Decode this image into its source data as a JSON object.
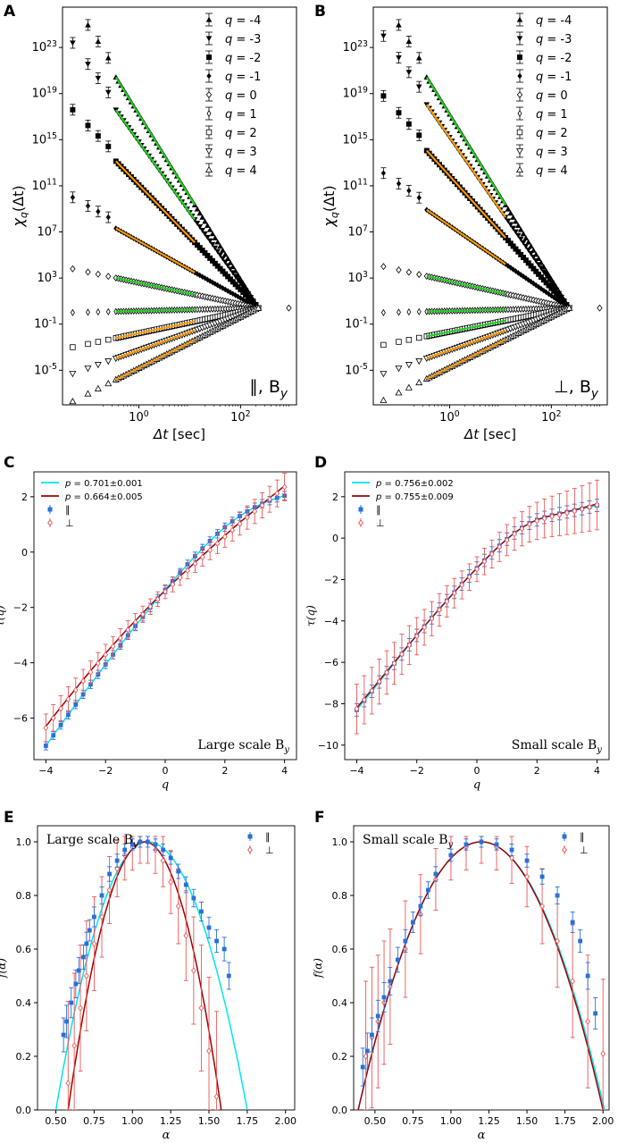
{
  "figure": {
    "panel_letters": [
      "A",
      "B",
      "C",
      "D",
      "E",
      "F"
    ]
  },
  "chart_data": [
    {
      "id": "A",
      "type": "scatter",
      "xscale": "log",
      "yscale": "log",
      "xlim_exp": [
        -1.5,
        3.1
      ],
      "ylim_exp": [
        -8,
        26.5
      ],
      "xticks": [
        {
          "exp": 0,
          "label": "10^0"
        },
        {
          "exp": 2,
          "label": "10^2"
        }
      ],
      "yticks": [
        {
          "exp": -5,
          "label": "10^-5"
        },
        {
          "exp": -1,
          "label": "10^-1"
        },
        {
          "exp": 3,
          "label": "10^3"
        },
        {
          "exp": 7,
          "label": "10^7"
        },
        {
          "exp": 11,
          "label": "10^11"
        },
        {
          "exp": 15,
          "label": "10^15"
        },
        {
          "exp": 19,
          "label": "10^19"
        },
        {
          "exp": 23,
          "label": "10^23"
        }
      ],
      "xlabel": "Δt [sec]",
      "ylabel": "χ_q(Δt)",
      "annotation": "∥, B_y",
      "legend": [
        "q = -4",
        "q = -3",
        "q = -2",
        "q = -1",
        "q = 0",
        "q = 1",
        "q = 2",
        "q = 3",
        "q = 4"
      ],
      "series": [
        {
          "q": -4,
          "start_exp": 26.5,
          "fit": "green"
        },
        {
          "q": -3,
          "start_exp": 22.8,
          "fit": "green"
        },
        {
          "q": -2,
          "start_exp": 17.0,
          "fit": "orange"
        },
        {
          "q": -1,
          "start_exp": 9.4,
          "fit": "orange"
        },
        {
          "q": 0,
          "start_exp": 3.8,
          "fit": "green"
        },
        {
          "q": 1,
          "start_exp": 0.0,
          "fit": "green"
        },
        {
          "q": 2,
          "start_exp": -3.0,
          "fit": "orange"
        },
        {
          "q": 3,
          "start_exp": -5.3,
          "fit": "orange"
        },
        {
          "q": 4,
          "start_exp": -7.7,
          "fit": "orange"
        }
      ],
      "converge_exp": 0.4
    },
    {
      "id": "B",
      "type": "scatter",
      "xscale": "log",
      "yscale": "log",
      "xlim_exp": [
        -1.5,
        3.1
      ],
      "ylim_exp": [
        -8,
        26.5
      ],
      "xticks": [
        {
          "exp": 0,
          "label": "10^0"
        },
        {
          "exp": 2,
          "label": "10^2"
        }
      ],
      "yticks": [
        {
          "exp": -5,
          "label": "10^-5"
        },
        {
          "exp": -1,
          "label": "10^-1"
        },
        {
          "exp": 3,
          "label": "10^3"
        },
        {
          "exp": 7,
          "label": "10^7"
        },
        {
          "exp": 11,
          "label": "10^11"
        },
        {
          "exp": 15,
          "label": "10^15"
        },
        {
          "exp": 19,
          "label": "10^19"
        },
        {
          "exp": 23,
          "label": "10^23"
        }
      ],
      "xlabel": "Δt [sec]",
      "ylabel": "χ_q(Δt)",
      "annotation": "⊥, B_y",
      "legend": [
        "q = -4",
        "q = -3",
        "q = -2",
        "q = -1",
        "q = 0",
        "q = 1",
        "q = 2",
        "q = 3",
        "q = 4"
      ],
      "series": [
        {
          "q": -4,
          "start_exp": 26.5,
          "fit": "green"
        },
        {
          "q": -3,
          "start_exp": 23.4,
          "fit": "orange"
        },
        {
          "q": -2,
          "start_exp": 18.2,
          "fit": "orange"
        },
        {
          "q": -1,
          "start_exp": 11.5,
          "fit": "orange"
        },
        {
          "q": 0,
          "start_exp": 4.0,
          "fit": "green"
        },
        {
          "q": 1,
          "start_exp": 0.0,
          "fit": "green"
        },
        {
          "q": 2,
          "start_exp": -2.8,
          "fit": "green"
        },
        {
          "q": 3,
          "start_exp": -5.3,
          "fit": "orange"
        },
        {
          "q": 4,
          "start_exp": -7.6,
          "fit": "orange"
        }
      ],
      "converge_exp": 0.4
    },
    {
      "id": "C",
      "type": "line",
      "xlim": [
        -4.4,
        4.4
      ],
      "ylim": [
        -7.5,
        2.9
      ],
      "xticks": [
        -4,
        -2,
        0,
        2,
        4
      ],
      "yticks": [
        -6,
        -4,
        -2,
        0,
        2
      ],
      "xlabel": "q",
      "ylabel": "τ(q)",
      "annotation": "Large scale B_y",
      "legend": [
        {
          "label": "p = 0.701±0.001",
          "color": "#00e5ee",
          "kind": "line"
        },
        {
          "label": "p = 0.664±0.005",
          "color": "#a00000",
          "kind": "line"
        },
        {
          "label": "∥",
          "color": "#2a6fdb",
          "kind": "square"
        },
        {
          "label": "⊥",
          "color": "#ee5555",
          "kind": "diamond"
        }
      ],
      "q": [
        -4,
        -3.75,
        -3.5,
        -3.25,
        -3,
        -2.75,
        -2.5,
        -2.25,
        -2,
        -1.75,
        -1.5,
        -1.25,
        -1,
        -0.75,
        -0.5,
        -0.25,
        0,
        0.25,
        0.5,
        0.75,
        1,
        1.25,
        1.5,
        1.75,
        2,
        2.25,
        2.5,
        2.75,
        3,
        3.25,
        3.5,
        3.75,
        4
      ],
      "series": [
        {
          "name": "∥ fit",
          "color": "#00e5ee",
          "values": [
            -7.0,
            -6.62,
            -6.25,
            -5.88,
            -5.51,
            -5.14,
            -4.78,
            -4.42,
            -4.06,
            -3.71,
            -3.36,
            -3.01,
            -2.67,
            -2.34,
            -2.0,
            -1.68,
            -1.36,
            -1.05,
            -0.74,
            -0.44,
            -0.15,
            0.13,
            0.4,
            0.66,
            0.9,
            1.11,
            1.3,
            1.47,
            1.62,
            1.75,
            1.86,
            1.96,
            2.04
          ]
        },
        {
          "name": "⊥ fit",
          "color": "#a00000",
          "values": [
            -6.3,
            -5.95,
            -5.61,
            -5.27,
            -4.94,
            -4.61,
            -4.29,
            -3.97,
            -3.66,
            -3.36,
            -3.06,
            -2.76,
            -2.48,
            -2.2,
            -1.92,
            -1.65,
            -1.38,
            -1.12,
            -0.87,
            -0.62,
            -0.37,
            -0.13,
            0.12,
            0.36,
            0.6,
            0.84,
            1.07,
            1.3,
            1.52,
            1.74,
            1.96,
            2.17,
            2.4
          ]
        }
      ],
      "err_par": 0.15,
      "err_perp": 0.25
    },
    {
      "id": "D",
      "type": "line",
      "xlim": [
        -4.4,
        4.4
      ],
      "ylim": [
        -10.7,
        3.2
      ],
      "xticks": [
        -4,
        -2,
        0,
        2,
        4
      ],
      "yticks": [
        -10,
        -8,
        -6,
        -4,
        -2,
        0,
        2
      ],
      "xlabel": "q",
      "ylabel": "τ(q)",
      "annotation": "Small scale B_y",
      "legend": [
        {
          "label": "p = 0.756±0.002",
          "color": "#00e5ee",
          "kind": "line"
        },
        {
          "label": "p = 0.755±0.009",
          "color": "#a00000",
          "kind": "line"
        },
        {
          "label": "∥",
          "color": "#2a6fdb",
          "kind": "square"
        },
        {
          "label": "⊥",
          "color": "#ee5555",
          "kind": "diamond"
        }
      ],
      "q": [
        -4,
        -3.75,
        -3.5,
        -3.25,
        -3,
        -2.75,
        -2.5,
        -2.25,
        -2,
        -1.75,
        -1.5,
        -1.25,
        -1,
        -0.75,
        -0.5,
        -0.25,
        0,
        0.25,
        0.5,
        0.75,
        1,
        1.25,
        1.5,
        1.75,
        2,
        2.25,
        2.5,
        2.75,
        3,
        3.25,
        3.5,
        3.75,
        4
      ],
      "series": [
        {
          "name": "∥ fit",
          "color": "#00e5ee",
          "values": [
            -8.3,
            -7.85,
            -7.4,
            -6.95,
            -6.5,
            -6.05,
            -5.6,
            -5.15,
            -4.7,
            -4.27,
            -3.85,
            -3.43,
            -3.02,
            -2.62,
            -2.22,
            -1.83,
            -1.45,
            -1.08,
            -0.72,
            -0.37,
            -0.05,
            0.25,
            0.5,
            0.72,
            0.88,
            1.0,
            1.1,
            1.18,
            1.26,
            1.34,
            1.42,
            1.5,
            1.58
          ]
        },
        {
          "name": "⊥ fit",
          "color": "#a00000",
          "values": [
            -8.2,
            -7.76,
            -7.32,
            -6.88,
            -6.44,
            -6.0,
            -5.56,
            -5.12,
            -4.69,
            -4.26,
            -3.84,
            -3.42,
            -3.01,
            -2.61,
            -2.21,
            -1.83,
            -1.45,
            -1.08,
            -0.72,
            -0.37,
            -0.05,
            0.25,
            0.5,
            0.72,
            0.88,
            1.0,
            1.1,
            1.18,
            1.27,
            1.36,
            1.45,
            1.55,
            1.65
          ]
        }
      ],
      "err_par": 0.3,
      "err_perp": 0.6
    },
    {
      "id": "E",
      "type": "line",
      "xlim": [
        0.38,
        2.06
      ],
      "ylim": [
        0,
        1.06
      ],
      "xticks": [
        0.5,
        0.75,
        1.0,
        1.25,
        1.5,
        1.75,
        2.0
      ],
      "xtick_labels": [
        "0.50",
        "0.75",
        "1.00",
        "1.25",
        "1.50",
        "1.75",
        "2.00"
      ],
      "yticks": [
        0,
        0.2,
        0.4,
        0.6,
        0.8,
        1.0
      ],
      "ytick_labels": [
        "0.0",
        "0.2",
        "0.4",
        "0.6",
        "0.8",
        "1.0"
      ],
      "xlabel": "α",
      "ylabel": "f(α)",
      "annotation": "Large scale B_y",
      "legend": [
        {
          "label": "∥",
          "color": "#2a6fdb",
          "kind": "square"
        },
        {
          "label": "⊥",
          "color": "#ee5555",
          "kind": "diamond"
        }
      ],
      "curves": [
        {
          "name": "∥ fit",
          "color": "#00e5ee",
          "peak": 1.1,
          "left_root": 0.5,
          "right_root": 1.75
        },
        {
          "name": "⊥ fit",
          "color": "#a00000",
          "peak": 1.08,
          "left_root": 0.58,
          "right_root": 1.58
        }
      ],
      "par_points": {
        "x": [
          0.55,
          0.57,
          0.6,
          0.63,
          0.65,
          0.68,
          0.7,
          0.72,
          0.75,
          0.8,
          0.85,
          0.9,
          0.95,
          1.0,
          1.05,
          1.1,
          1.15,
          1.2,
          1.25,
          1.3,
          1.35,
          1.4,
          1.45,
          1.5,
          1.55,
          1.6,
          1.63
        ],
        "y": [
          0.28,
          0.33,
          0.4,
          0.47,
          0.52,
          0.57,
          0.62,
          0.67,
          0.72,
          0.8,
          0.88,
          0.93,
          0.97,
          0.99,
          1.0,
          1.0,
          0.99,
          0.97,
          0.94,
          0.89,
          0.84,
          0.79,
          0.74,
          0.68,
          0.63,
          0.6,
          0.5
        ]
      },
      "perp_points": {
        "x": [
          0.58,
          0.62,
          0.66,
          0.7,
          0.75,
          0.8,
          0.85,
          0.9,
          0.95,
          1.0,
          1.05,
          1.1,
          1.15,
          1.2,
          1.25,
          1.3,
          1.35,
          1.4,
          1.45,
          1.5,
          1.55
        ],
        "y": [
          0.1,
          0.24,
          0.38,
          0.5,
          0.62,
          0.72,
          0.82,
          0.9,
          0.95,
          0.98,
          1.0,
          1.0,
          0.97,
          0.93,
          0.85,
          0.76,
          0.65,
          0.52,
          0.38,
          0.22,
          0.05
        ]
      }
    },
    {
      "id": "F",
      "type": "line",
      "xlim": [
        0.36,
        2.04
      ],
      "ylim": [
        0,
        1.06
      ],
      "xticks": [
        0.5,
        0.75,
        1.0,
        1.25,
        1.5,
        1.75,
        2.0
      ],
      "xtick_labels": [
        "0.50",
        "0.75",
        "1.00",
        "1.25",
        "1.50",
        "1.75",
        "2.00"
      ],
      "yticks": [
        0,
        0.2,
        0.4,
        0.6,
        0.8,
        1.0
      ],
      "ytick_labels": [
        "0.0",
        "0.2",
        "0.4",
        "0.6",
        "0.8",
        "1.0"
      ],
      "xlabel": "α",
      "ylabel": "f(α)",
      "annotation": "Small scale B_y",
      "legend": [
        {
          "label": "∥",
          "color": "#2a6fdb",
          "kind": "square"
        },
        {
          "label": "⊥",
          "color": "#ee5555",
          "kind": "diamond"
        }
      ],
      "curves": [
        {
          "name": "∥ fit",
          "color": "#00e5ee",
          "peak": 1.2,
          "left_root": 0.39,
          "right_root": 2.01
        },
        {
          "name": "⊥ fit",
          "color": "#a00000",
          "peak": 1.2,
          "left_root": 0.39,
          "right_root": 2.0
        }
      ],
      "par_points": {
        "x": [
          0.42,
          0.45,
          0.48,
          0.52,
          0.56,
          0.6,
          0.65,
          0.7,
          0.75,
          0.8,
          0.85,
          0.9,
          1.0,
          1.1,
          1.2,
          1.3,
          1.4,
          1.5,
          1.6,
          1.7,
          1.8,
          1.85,
          1.9,
          1.95
        ],
        "y": [
          0.16,
          0.22,
          0.28,
          0.35,
          0.42,
          0.48,
          0.56,
          0.63,
          0.7,
          0.76,
          0.82,
          0.88,
          0.95,
          0.99,
          1.0,
          0.99,
          0.97,
          0.93,
          0.87,
          0.8,
          0.7,
          0.63,
          0.5,
          0.36
        ]
      },
      "perp_points": {
        "x": [
          0.44,
          0.48,
          0.52,
          0.56,
          0.6,
          0.7,
          0.8,
          0.9,
          1.0,
          1.1,
          1.2,
          1.3,
          1.4,
          1.5,
          1.6,
          1.7,
          1.8,
          1.9,
          2.0
        ],
        "y": [
          0.2,
          0.27,
          0.33,
          0.4,
          0.46,
          0.6,
          0.73,
          0.86,
          0.95,
          0.98,
          1.0,
          0.98,
          0.94,
          0.87,
          0.76,
          0.63,
          0.48,
          0.33,
          0.21
        ]
      }
    }
  ]
}
